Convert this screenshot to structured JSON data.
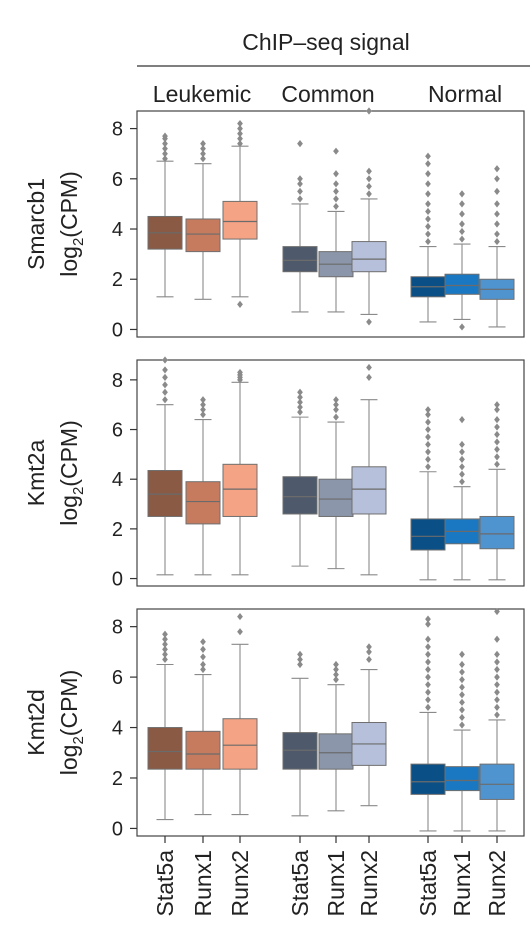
{
  "figure": {
    "top_title": "ChIP–seq signal",
    "groups": [
      "Leukemic",
      "Common",
      "Normal"
    ],
    "x_tick_labels": [
      "Stat5a",
      "Runx1",
      "Runx2",
      "Stat5a",
      "Runx1",
      "Runx2",
      "Stat5a",
      "Runx1",
      "Runx2"
    ],
    "ylabel_suffix_main": "log",
    "ylabel_suffix_sub": "2",
    "ylabel_suffix_tail": "(CPM)"
  },
  "colors": {
    "leukemic": [
      "#8a5a44",
      "#c77b5e",
      "#f4a384"
    ],
    "common": [
      "#4e5a6b",
      "#8b96ab",
      "#b6c0da"
    ],
    "normal": [
      "#0a4f86",
      "#1a78c2",
      "#4f93cf"
    ],
    "whisker": "#8a8a8a",
    "outlier": "#8a8a8a"
  },
  "chart_data": [
    {
      "type": "box",
      "ylabel": "Smarcb1",
      "ylim": [
        -0.3,
        8.7
      ],
      "yticks": [
        0,
        2,
        4,
        6,
        8
      ],
      "boxes": [
        {
          "group": "Leukemic",
          "name": "Stat5a",
          "whisker_low": 1.3,
          "q1": 3.2,
          "median": 3.85,
          "q3": 4.5,
          "whisker_high": 6.7,
          "outliers_high": [
            6.8,
            7.0,
            7.2,
            7.4,
            7.6,
            7.7
          ]
        },
        {
          "group": "Leukemic",
          "name": "Runx1",
          "whisker_low": 1.2,
          "q1": 3.1,
          "median": 3.8,
          "q3": 4.4,
          "whisker_high": 6.6,
          "outliers_high": [
            6.8,
            7.0,
            7.2,
            7.4
          ]
        },
        {
          "group": "Leukemic",
          "name": "Runx2",
          "whisker_low": 1.3,
          "q1": 3.6,
          "median": 4.3,
          "q3": 5.1,
          "whisker_high": 7.3,
          "outliers_high": [
            7.4,
            7.6,
            7.8,
            8.0,
            8.2
          ],
          "outliers_low": [
            1.0
          ]
        },
        {
          "group": "Common",
          "name": "Stat5a",
          "whisker_low": 0.7,
          "q1": 2.3,
          "median": 2.75,
          "q3": 3.3,
          "whisker_high": 5.0,
          "outliers_high": [
            5.2,
            5.5,
            5.8,
            6.0,
            7.4
          ]
        },
        {
          "group": "Common",
          "name": "Runx1",
          "whisker_low": 0.7,
          "q1": 2.1,
          "median": 2.6,
          "q3": 3.1,
          "whisker_high": 4.7,
          "outliers_high": [
            4.9,
            5.2,
            5.5,
            5.8,
            6.2,
            7.1
          ]
        },
        {
          "group": "Common",
          "name": "Runx2",
          "whisker_low": 0.6,
          "q1": 2.3,
          "median": 2.8,
          "q3": 3.5,
          "whisker_high": 5.2,
          "outliers_high": [
            5.4,
            5.7,
            6.0,
            6.3,
            8.7
          ],
          "outliers_low": [
            0.3
          ]
        },
        {
          "group": "Normal",
          "name": "Stat5a",
          "whisker_low": 0.3,
          "q1": 1.3,
          "median": 1.7,
          "q3": 2.1,
          "whisker_high": 3.3,
          "outliers_high": [
            3.5,
            3.8,
            4.1,
            4.4,
            4.7,
            5.0,
            5.4,
            5.8,
            6.2,
            6.6,
            6.9
          ]
        },
        {
          "group": "Normal",
          "name": "Runx1",
          "whisker_low": 0.4,
          "q1": 1.4,
          "median": 1.75,
          "q3": 2.2,
          "whisker_high": 3.4,
          "outliers_high": [
            3.6,
            3.9,
            4.2,
            4.6,
            5.0,
            5.4
          ],
          "outliers_low": [
            0.1
          ]
        },
        {
          "group": "Normal",
          "name": "Runx2",
          "whisker_low": 0.1,
          "q1": 1.2,
          "median": 1.6,
          "q3": 2.0,
          "whisker_high": 3.3,
          "outliers_high": [
            3.5,
            3.8,
            4.2,
            4.6,
            5.0,
            5.5,
            6.0,
            6.4
          ]
        }
      ]
    },
    {
      "type": "box",
      "ylabel": "Kmt2a",
      "ylim": [
        -0.3,
        8.8
      ],
      "yticks": [
        0,
        2,
        4,
        6,
        8
      ],
      "boxes": [
        {
          "group": "Leukemic",
          "name": "Stat5a",
          "whisker_low": 0.15,
          "q1": 2.5,
          "median": 3.4,
          "q3": 4.35,
          "whisker_high": 7.0,
          "outliers_high": [
            7.2,
            7.5,
            7.8,
            8.1,
            8.4,
            8.8
          ]
        },
        {
          "group": "Leukemic",
          "name": "Runx1",
          "whisker_low": 0.15,
          "q1": 2.2,
          "median": 3.1,
          "q3": 3.9,
          "whisker_high": 6.4,
          "outliers_high": [
            6.6,
            6.8,
            7.0,
            7.2
          ]
        },
        {
          "group": "Leukemic",
          "name": "Runx2",
          "whisker_low": 0.15,
          "q1": 2.5,
          "median": 3.6,
          "q3": 4.6,
          "whisker_high": 7.9,
          "outliers_high": [
            8.0,
            8.1,
            8.2,
            8.3
          ]
        },
        {
          "group": "Common",
          "name": "Stat5a",
          "whisker_low": 0.5,
          "q1": 2.6,
          "median": 3.3,
          "q3": 4.1,
          "whisker_high": 6.5,
          "outliers_high": [
            6.7,
            6.9,
            7.1,
            7.3,
            7.5
          ]
        },
        {
          "group": "Common",
          "name": "Runx1",
          "whisker_low": 0.4,
          "q1": 2.5,
          "median": 3.2,
          "q3": 4.0,
          "whisker_high": 6.3,
          "outliers_high": [
            6.5,
            6.8,
            7.0,
            7.2
          ]
        },
        {
          "group": "Common",
          "name": "Runx2",
          "whisker_low": 0.15,
          "q1": 2.6,
          "median": 3.6,
          "q3": 4.5,
          "whisker_high": 7.2,
          "outliers_high": [
            8.1,
            8.5
          ]
        },
        {
          "group": "Normal",
          "name": "Stat5a",
          "whisker_low": -0.05,
          "q1": 1.15,
          "median": 1.7,
          "q3": 2.4,
          "whisker_high": 4.3,
          "outliers_high": [
            4.5,
            4.8,
            5.1,
            5.4,
            5.7,
            6.0,
            6.3,
            6.6,
            6.8
          ]
        },
        {
          "group": "Normal",
          "name": "Runx1",
          "whisker_low": -0.05,
          "q1": 1.4,
          "median": 1.9,
          "q3": 2.4,
          "whisker_high": 3.7,
          "outliers_high": [
            3.9,
            4.2,
            4.5,
            4.8,
            5.1,
            5.4,
            6.4
          ]
        },
        {
          "group": "Normal",
          "name": "Runx2",
          "whisker_low": -0.05,
          "q1": 1.2,
          "median": 1.8,
          "q3": 2.5,
          "whisker_high": 4.4,
          "outliers_high": [
            4.6,
            4.9,
            5.2,
            5.5,
            5.8,
            6.1,
            6.4,
            6.8,
            7.0
          ]
        }
      ]
    },
    {
      "type": "box",
      "ylabel": "Kmt2d",
      "ylim": [
        -0.3,
        8.7
      ],
      "yticks": [
        0,
        2,
        4,
        6,
        8
      ],
      "boxes": [
        {
          "group": "Leukemic",
          "name": "Stat5a",
          "whisker_low": 0.35,
          "q1": 2.35,
          "median": 3.05,
          "q3": 4.0,
          "whisker_high": 6.5,
          "outliers_high": [
            6.7,
            6.9,
            7.1,
            7.3,
            7.5,
            7.7
          ]
        },
        {
          "group": "Leukemic",
          "name": "Runx1",
          "whisker_low": 0.55,
          "q1": 2.35,
          "median": 2.95,
          "q3": 3.85,
          "whisker_high": 6.1,
          "outliers_high": [
            6.3,
            6.5,
            6.8,
            7.1,
            7.4
          ]
        },
        {
          "group": "Leukemic",
          "name": "Runx2",
          "whisker_low": 0.55,
          "q1": 2.35,
          "median": 3.3,
          "q3": 4.35,
          "whisker_high": 7.3,
          "outliers_high": [
            7.8,
            8.4
          ]
        },
        {
          "group": "Common",
          "name": "Stat5a",
          "whisker_low": 0.5,
          "q1": 2.35,
          "median": 3.1,
          "q3": 3.8,
          "whisker_high": 5.95,
          "outliers_high": [
            6.5,
            6.7,
            6.9
          ]
        },
        {
          "group": "Common",
          "name": "Runx1",
          "whisker_low": 0.7,
          "q1": 2.35,
          "median": 3.0,
          "q3": 3.75,
          "whisker_high": 5.7,
          "outliers_high": [
            5.9,
            6.1,
            6.3,
            6.5
          ]
        },
        {
          "group": "Common",
          "name": "Runx2",
          "whisker_low": 0.9,
          "q1": 2.5,
          "median": 3.35,
          "q3": 4.2,
          "whisker_high": 6.3,
          "outliers_high": [
            6.7,
            7.0,
            7.2
          ]
        },
        {
          "group": "Normal",
          "name": "Stat5a",
          "whisker_low": -0.1,
          "q1": 1.35,
          "median": 1.85,
          "q3": 2.55,
          "whisker_high": 4.6,
          "outliers_high": [
            4.8,
            5.1,
            5.4,
            5.7,
            6.0,
            6.3,
            6.6,
            6.9,
            7.2,
            7.5,
            8.1,
            8.3
          ]
        },
        {
          "group": "Normal",
          "name": "Runx1",
          "whisker_low": -0.1,
          "q1": 1.5,
          "median": 1.9,
          "q3": 2.45,
          "whisker_high": 3.9,
          "outliers_high": [
            4.1,
            4.4,
            4.7,
            5.0,
            5.3,
            5.6,
            5.9,
            6.2,
            6.5,
            6.9
          ]
        },
        {
          "group": "Normal",
          "name": "Runx2",
          "whisker_low": -0.1,
          "q1": 1.15,
          "median": 1.75,
          "q3": 2.55,
          "whisker_high": 4.3,
          "outliers_high": [
            4.5,
            4.8,
            5.1,
            5.4,
            5.7,
            6.0,
            6.3,
            6.6,
            6.9,
            7.5,
            8.6
          ]
        }
      ]
    }
  ]
}
